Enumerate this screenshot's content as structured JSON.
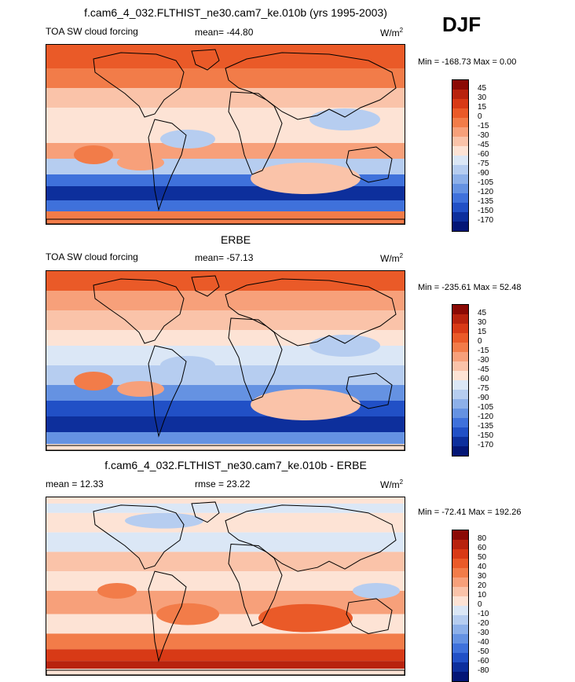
{
  "season": "DJF",
  "panels": [
    {
      "title": "f.cam6_4_032.FLTHIST_ne30.cam7_ke.010b (yrs 1995-2003)",
      "left_label": "TOA SW cloud forcing",
      "center_label": "mean= -44.80",
      "units": "W/m",
      "units_sup": "2",
      "minmax": "Min = -168.73 Max =   0.00",
      "colorbar_labels": [
        "45",
        "30",
        "15",
        "0",
        "-15",
        "-30",
        "-45",
        "-60",
        "-75",
        "-90",
        "-105",
        "-120",
        "-135",
        "-150",
        "-170"
      ],
      "colors": [
        "#8b0a05",
        "#b8230e",
        "#d83a16",
        "#ea5a28",
        "#f27c49",
        "#f7a07a",
        "#fac3a9",
        "#fde3d5",
        "#dbe7f6",
        "#b6cdf0",
        "#8db0e9",
        "#6592e2",
        "#3f71db",
        "#2150c6",
        "#0d2f9c",
        "#041676"
      ]
    },
    {
      "title": "ERBE",
      "left_label": "TOA SW cloud forcing",
      "center_label": "mean= -57.13",
      "units": "W/m",
      "units_sup": "2",
      "minmax": "Min = -235.61 Max =  52.48",
      "colorbar_labels": [
        "45",
        "30",
        "15",
        "0",
        "-15",
        "-30",
        "-45",
        "-60",
        "-75",
        "-90",
        "-105",
        "-120",
        "-135",
        "-150",
        "-170"
      ],
      "colors": [
        "#8b0a05",
        "#b8230e",
        "#d83a16",
        "#ea5a28",
        "#f27c49",
        "#f7a07a",
        "#fac3a9",
        "#fde3d5",
        "#dbe7f6",
        "#b6cdf0",
        "#8db0e9",
        "#6592e2",
        "#3f71db",
        "#2150c6",
        "#0d2f9c",
        "#041676"
      ]
    },
    {
      "title": "f.cam6_4_032.FLTHIST_ne30.cam7_ke.010b - ERBE",
      "left_label": "mean =  12.33",
      "center_label": "rmse =  23.22",
      "units": "W/m",
      "units_sup": "2",
      "minmax": "Min = -72.41 Max = 192.26",
      "colorbar_labels": [
        "80",
        "60",
        "50",
        "40",
        "30",
        "20",
        "10",
        "0",
        "-10",
        "-20",
        "-30",
        "-40",
        "-50",
        "-60",
        "-80"
      ],
      "colors": [
        "#8b0a05",
        "#b8230e",
        "#d83a16",
        "#ea5a28",
        "#f27c49",
        "#f7a07a",
        "#fac3a9",
        "#fde3d5",
        "#dbe7f6",
        "#b6cdf0",
        "#8db0e9",
        "#6592e2",
        "#3f71db",
        "#2150c6",
        "#0d2f9c",
        "#041676"
      ]
    }
  ],
  "chart_data": [
    {
      "type": "heatmap",
      "title": "f.cam6_4_032.FLTHIST_ne30.cam7_ke.010b (yrs 1995-2003)",
      "variable": "TOA SW cloud forcing",
      "mean": -44.8,
      "min": -168.73,
      "max": 0.0,
      "units": "W/m2",
      "levels": [
        45,
        30,
        15,
        0,
        -15,
        -30,
        -45,
        -60,
        -75,
        -90,
        -105,
        -120,
        -135,
        -150,
        -170
      ]
    },
    {
      "type": "heatmap",
      "title": "ERBE",
      "variable": "TOA SW cloud forcing",
      "mean": -57.13,
      "min": -235.61,
      "max": 52.48,
      "units": "W/m2",
      "levels": [
        45,
        30,
        15,
        0,
        -15,
        -30,
        -45,
        -60,
        -75,
        -90,
        -105,
        -120,
        -135,
        -150,
        -170
      ]
    },
    {
      "type": "heatmap",
      "title": "f.cam6_4_032.FLTHIST_ne30.cam7_ke.010b - ERBE",
      "mean": 12.33,
      "rmse": 23.22,
      "min": -72.41,
      "max": 192.26,
      "units": "W/m2",
      "levels": [
        80,
        60,
        50,
        40,
        30,
        20,
        10,
        0,
        -10,
        -20,
        -30,
        -40,
        -50,
        -60,
        -80
      ]
    }
  ]
}
